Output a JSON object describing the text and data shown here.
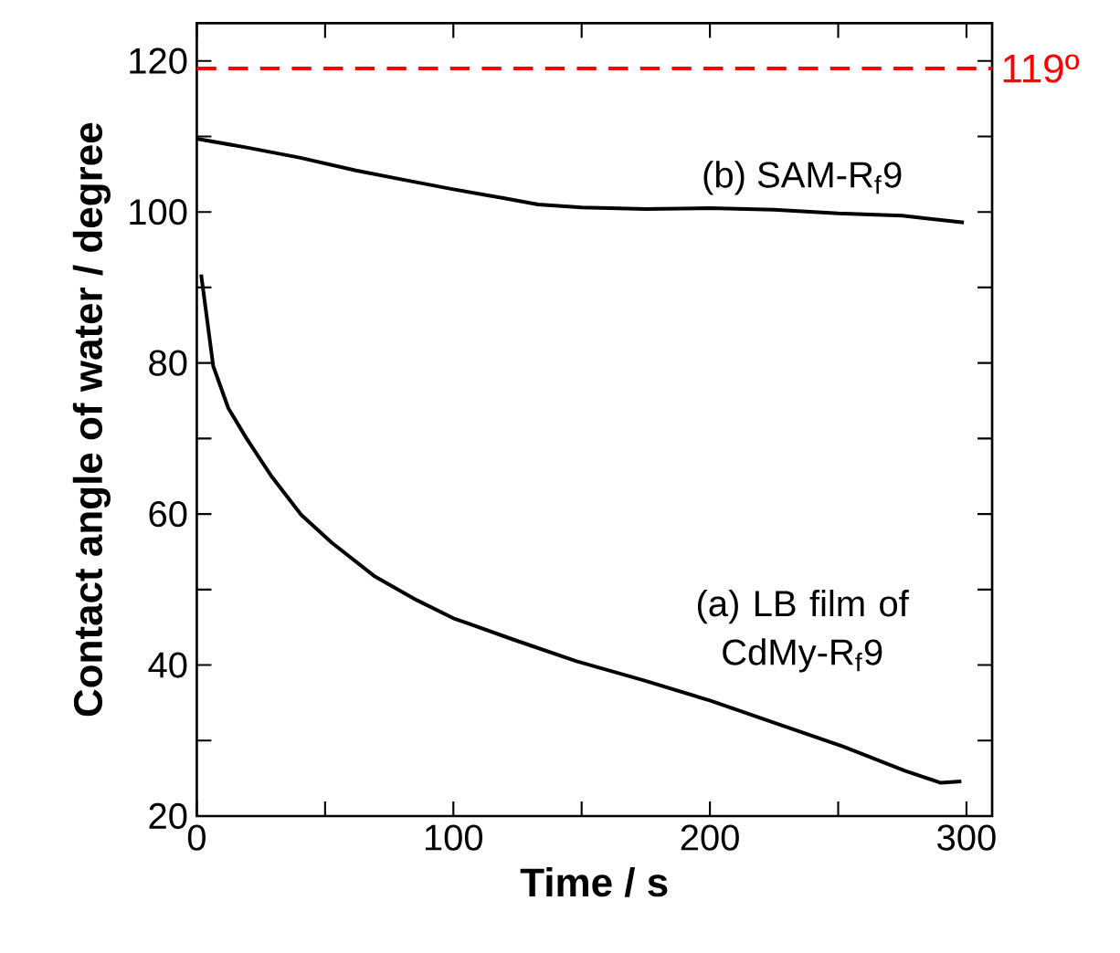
{
  "chart_data": {
    "type": "line",
    "xlabel": "Time / s",
    "ylabel": "Contact angle of water / degree",
    "xlim": [
      0,
      310
    ],
    "ylim": [
      20,
      125
    ],
    "xticks": [
      0,
      {
        "value": 50,
        "label": null
      },
      100,
      {
        "value": 150,
        "label": null
      },
      200,
      {
        "value": 250,
        "label": null
      },
      300
    ],
    "yticks": [
      20,
      {
        "value": 30,
        "label": null
      },
      40,
      {
        "value": 50,
        "label": null
      },
      60,
      {
        "value": 70,
        "label": null
      },
      80,
      {
        "value": 90,
        "label": null
      },
      100,
      {
        "value": 110,
        "label": null
      },
      120
    ],
    "grid": false,
    "legend": false,
    "marker": "none",
    "line_style": "solid",
    "ref_lines": [
      {
        "axis": "y",
        "value": 119,
        "label": "119º",
        "color": "#ff0000",
        "line_style": "dashed"
      }
    ],
    "series": [
      {
        "name": "(a) LB film of CdMy-R$_{f}$9",
        "color": "#000000",
        "x": [
          1.7,
          6.4,
          12.3,
          19.4,
          28.9,
          40.7,
          52.6,
          69.1,
          85.7,
          100,
          124,
          148,
          174,
          200,
          228,
          252,
          276,
          290,
          298
        ],
        "values": [
          91.7,
          79.6,
          74,
          70,
          65.1,
          59.9,
          56.2,
          51.8,
          48.6,
          46.2,
          43.3,
          40.5,
          38,
          35.3,
          32,
          29.2,
          26,
          24.4,
          24.6
        ]
      },
      {
        "name": "(b) SAM-R$_{f}$9",
        "color": "#000000",
        "x": [
          0,
          20,
          40,
          62,
          80,
          100,
          120,
          133,
          150,
          175,
          200,
          225,
          250,
          275,
          299
        ],
        "values": [
          109.7,
          108.5,
          107.2,
          105.5,
          104.3,
          103,
          101.8,
          101,
          100.6,
          100.4,
          100.5,
          100.3,
          99.8,
          99.5,
          98.6
        ]
      }
    ]
  }
}
